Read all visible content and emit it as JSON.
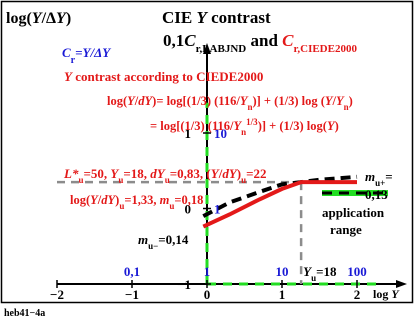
{
  "colors": {
    "text": "#000000",
    "blue": "#1a1ad6",
    "red": "#e31919",
    "grid": "#8c8c8c",
    "green": "#22dd22",
    "curve_black": "#000000",
    "curve_red": "#e31919",
    "frame": "#000000"
  },
  "chart_data": {
    "type": "line",
    "title": "CIE Y contrast",
    "subtitle": {
      "part1": "0,1",
      "italic_c": "C",
      "sub1": "r,LABJND",
      "and": " and ",
      "italic_c2": "C",
      "sub2": "r,CIEDE2000"
    },
    "ylabel": "log(Y/ΔY)",
    "xlabel": "log Y",
    "xlim": [
      -2,
      2.3
    ],
    "ylim": [
      -1,
      1.4
    ],
    "x_ticks": [
      {
        "value": -2,
        "label": "−2"
      },
      {
        "value": -1,
        "label": "−1"
      },
      {
        "value": 0,
        "label": "0"
      },
      {
        "value": 1,
        "label": "1"
      },
      {
        "value": 2,
        "label": "2"
      }
    ],
    "y_ticks": [
      {
        "value": -1,
        "label": "−1"
      },
      {
        "value": 0,
        "label": "0"
      },
      {
        "value": 1,
        "label": "1"
      }
    ],
    "blue_x_labels": [
      {
        "value": -1,
        "label": "0,1"
      },
      {
        "value": 0,
        "label": "1"
      },
      {
        "value": 1,
        "label": "10"
      },
      {
        "value": 2,
        "label": "100"
      }
    ],
    "blue_y_labels": [
      {
        "value": 1,
        "label": "10"
      },
      {
        "value": 0,
        "label": "1"
      }
    ],
    "cr_axis_label": "C",
    "cr_axis_label_sub": "r",
    "cr_axis_label_rest": "=Y/ΔY",
    "yu_label": {
      "italic": "Y",
      "sub": "u",
      "rest": "=18"
    },
    "reference_point": {
      "x": 1.255,
      "y": 0.35
    },
    "ref_dashed_horizontal_y": 0.35,
    "series": [
      {
        "name": "0,1 Cr,LABJND",
        "style": "dashed",
        "x": [
          -0.05,
          0.3,
          0.7,
          1.0,
          1.255,
          1.5,
          2.0
        ],
        "y": [
          -0.1,
          0.08,
          0.22,
          0.32,
          0.35,
          0.38,
          0.42
        ]
      },
      {
        "name": "Cr,CIEDE2000",
        "style": "solid",
        "x": [
          -0.05,
          0.3,
          0.7,
          1.0,
          1.255,
          1.5,
          2.0
        ],
        "y": [
          -0.24,
          -0.08,
          0.12,
          0.26,
          0.35,
          0.35,
          0.35
        ]
      }
    ],
    "annotations": {
      "heading": "Y contrast according to CIEDE2000",
      "formula1": "log(Y/dY)= log[(1/3) (116/Yn)] + (1/3) log (Y/Yn)",
      "formula2": "= log[(1/3) (116/Yn1/3)] + (1/3) log(Y)",
      "params": "L*u=50, Yu=18, dYu=0,83, (Y/dYu)=22",
      "log_value": "log(Y/dY)u=1,33, mu=0,18",
      "m_minus": "mu−=0,14",
      "m_plus_line1": "mu+=",
      "m_plus_line2": "0,13",
      "application_line1": "application",
      "application_line2": "range"
    },
    "application_range": {
      "x_start": 1.255,
      "x_end": 2.3,
      "y": -1
    },
    "legend_application": {
      "placement": "bottom-right"
    }
  },
  "footer": {
    "code": "heb41−4a"
  }
}
